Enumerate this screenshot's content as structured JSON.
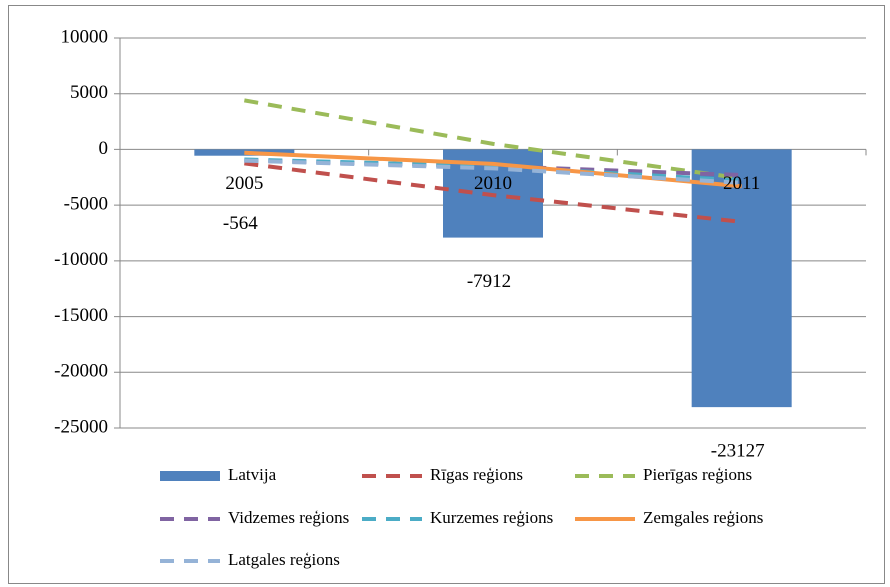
{
  "chart_data": {
    "type": "bar",
    "categories": [
      "2005",
      "2010",
      "2011"
    ],
    "series": [
      {
        "name": "Latvija",
        "type": "bar",
        "color": "#4f81bd",
        "values": [
          -564,
          -7912,
          -23127
        ]
      },
      {
        "name": "Rīgas reģions",
        "type": "line",
        "dashed": true,
        "color": "#c0504d",
        "values": [
          -1250,
          -4100,
          -6500
        ]
      },
      {
        "name": "Pierīgas reģions",
        "type": "line",
        "dashed": true,
        "color": "#9bbb59",
        "values": [
          4400,
          500,
          -2600
        ]
      },
      {
        "name": "Vidzemes reģions",
        "type": "line",
        "dashed": true,
        "color": "#8064a2",
        "values": [
          -1000,
          -1500,
          -2300
        ]
      },
      {
        "name": "Kurzemes reģions",
        "type": "line",
        "dashed": true,
        "color": "#4bacc6",
        "values": [
          -900,
          -1500,
          -2800
        ]
      },
      {
        "name": "Zemgales reģions",
        "type": "line",
        "dashed": false,
        "color": "#f79646",
        "values": [
          -300,
          -1300,
          -3300
        ]
      },
      {
        "name": "Latgales reģions",
        "type": "line",
        "dashed": true,
        "color": "#95b3d7",
        "values": [
          -1000,
          -1700,
          -3000
        ]
      }
    ],
    "ylim": [
      -25000,
      10000
    ],
    "yticks": [
      -25000,
      -20000,
      -15000,
      -10000,
      -5000,
      0,
      5000,
      10000
    ],
    "grid": true,
    "legend": "bottom",
    "data_labels_series": 0
  }
}
